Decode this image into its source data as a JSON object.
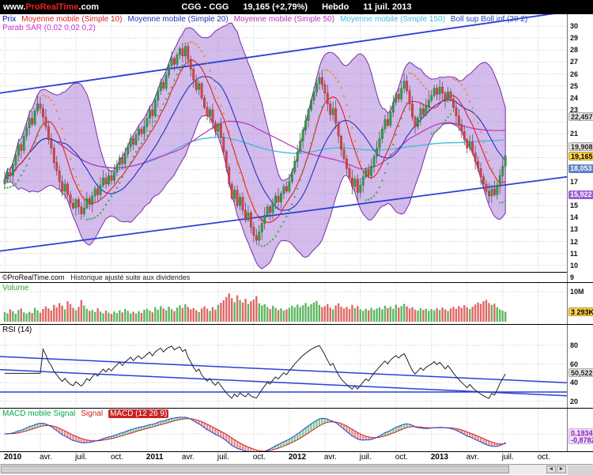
{
  "topbar": {
    "site_prefix": "www.",
    "site_brand": "ProRealTime",
    "site_suffix": ".com",
    "title": "CGG - CGG",
    "price": "19,165 (+2,79%)",
    "period": "Hebdo",
    "date": "11 juil. 2013"
  },
  "legend": {
    "prix": "Prix",
    "mm10": "Moyenne mobile (Simple 10)",
    "mm20": "Moyenne mobile (Simple 20)",
    "mm50": "Moyenne mobile (Simple 50)",
    "mm150": "Moyenne mobile (Simple 150)",
    "boll": "Boll sup Boll inf (20 2)",
    "sar": "Parab SAR (0,02 0,02 0,2)"
  },
  "copyright": {
    "brand": "©ProRealTime.com",
    "note": "Historique ajusté suite aux dividendes"
  },
  "panels": {
    "volume": {
      "label": "Volume",
      "tick_label": "10M",
      "badge": "3 293K"
    },
    "rsi": {
      "label": "RSI (14)",
      "badge": "50,522"
    },
    "macd": {
      "label_a": "MACD mobile Signal",
      "label_b": "Signal",
      "label_c": "MACD (12 26 9)",
      "badge_pos": "0,1934",
      "badge_neg": "-0,8782"
    }
  },
  "price_marks": [
    {
      "text": "22,457",
      "value": 22.457,
      "style": "silver"
    },
    {
      "text": "19,908",
      "value": 19.908,
      "style": "silver"
    },
    {
      "text": "19,165",
      "value": 19.165,
      "style": "yellow"
    },
    {
      "text": "18,053",
      "value": 18.053,
      "style": "blue"
    },
    {
      "text": "15,922",
      "value": 15.922,
      "style": "purple"
    }
  ],
  "xaxis": [
    {
      "label": "2010",
      "week": 0,
      "bold": true
    },
    {
      "label": "avr.",
      "week": 13,
      "bold": false
    },
    {
      "label": "juil.",
      "week": 26,
      "bold": false
    },
    {
      "label": "oct.",
      "week": 39,
      "bold": false
    },
    {
      "label": "2011",
      "week": 52,
      "bold": true
    },
    {
      "label": "avr.",
      "week": 65,
      "bold": false
    },
    {
      "label": "juil.",
      "week": 78,
      "bold": false
    },
    {
      "label": "oct.",
      "week": 91,
      "bold": false
    },
    {
      "label": "2012",
      "week": 104,
      "bold": true
    },
    {
      "label": "avr.",
      "week": 117,
      "bold": false
    },
    {
      "label": "juil.",
      "week": 130,
      "bold": false
    },
    {
      "label": "oct.",
      "week": 143,
      "bold": false
    },
    {
      "label": "2013",
      "week": 156,
      "bold": true
    },
    {
      "label": "avr.",
      "week": 169,
      "bold": false
    },
    {
      "label": "juil.",
      "week": 182,
      "bold": false
    },
    {
      "label": "oct.",
      "week": 195,
      "bold": false
    }
  ],
  "colors": {
    "up": "#2f9e44",
    "down": "#d64545",
    "wick": "#555555",
    "ma10": "#dd2222",
    "ma20": "#2233bb",
    "ma50": "#bb33bb",
    "ma150": "#44bbdd",
    "band_fill": "#a878d8",
    "band_edge": "#7a2fa8",
    "trend": "#2b3fd6",
    "grid": "#c8c8c8",
    "sar_up": "#3fae4a",
    "sar_down": "#ee8833",
    "vol_up": "#4cae50",
    "vol_down": "#dd5555",
    "rsi": "#222222",
    "macd_line": "#2244cc",
    "signal_line": "#cc2222",
    "hist_pos": "#55bb77",
    "hist_neg": "#dd6666"
  },
  "chart_data": {
    "type": "candlestick",
    "title": "CGG - CGG",
    "timeframe": "Hebdo (weekly)",
    "x_range": [
      "2010-01",
      "2013-10"
    ],
    "last_price": 19.165,
    "change_pct": 2.79,
    "price_axis": {
      "min": 8.8,
      "max": 30.75,
      "ticks": [
        30,
        29,
        28,
        27,
        26,
        25,
        24,
        23,
        21,
        17,
        15,
        14,
        13,
        12,
        11,
        10,
        9
      ]
    },
    "indicators": [
      "Moyenne mobile Simple 10",
      "Moyenne mobile Simple 20",
      "Moyenne mobile Simple 50",
      "Moyenne mobile Simple 150",
      "Bollinger 20 2",
      "Parabolique SAR 0,02 0,02 0,2",
      "Volume",
      "RSI 14",
      "MACD 12 26 9"
    ],
    "trendlines": [
      {
        "p_left": 24.4,
        "p_right": 31.2
      },
      {
        "p_left": 11.2,
        "p_right": 17.4
      }
    ],
    "rsi_trendlines": [
      {
        "from": 68,
        "to": 40
      },
      {
        "from": 54,
        "to": 26
      }
    ],
    "rsi_hline": 30,
    "rsi_axis": {
      "ticks": [
        80,
        60,
        40,
        20
      ],
      "last": 50.522
    },
    "volume_axis": {
      "tick_value": 10,
      "last_value": 3.293
    },
    "macd_axis": {
      "macd_last": 0.1934,
      "signal_last": -0.8782
    },
    "closes": [
      17.2,
      17.8,
      17.5,
      18.4,
      19.2,
      20.1,
      19.6,
      20.8,
      21.5,
      22.3,
      21.8,
      22.9,
      23.5,
      23.1,
      22.4,
      21.6,
      20.5,
      19.8,
      18.6,
      17.9,
      17.0,
      16.2,
      16.8,
      15.9,
      15.2,
      14.8,
      15.5,
      14.9,
      14.3,
      14.8,
      15.6,
      15.1,
      15.8,
      16.4,
      15.9,
      16.7,
      17.3,
      16.8,
      17.5,
      17.1,
      17.8,
      18.4,
      19.0,
      18.5,
      19.3,
      19.9,
      20.6,
      20.1,
      20.9,
      21.4,
      21.0,
      21.6,
      22.3,
      23.0,
      22.5,
      23.8,
      24.6,
      25.3,
      24.8,
      25.9,
      26.7,
      27.3,
      26.8,
      27.6,
      28.1,
      27.5,
      28.3,
      27.2,
      26.4,
      25.5,
      24.7,
      25.2,
      24.0,
      23.2,
      22.5,
      23.0,
      21.9,
      21.2,
      21.8,
      20.7,
      19.5,
      18.2,
      16.8,
      15.6,
      16.3,
      15.0,
      15.7,
      14.6,
      13.8,
      14.4,
      13.2,
      12.5,
      12.1,
      12.8,
      13.5,
      14.2,
      14.9,
      14.4,
      15.2,
      15.8,
      15.3,
      16.0,
      16.6,
      16.2,
      17.0,
      17.8,
      18.7,
      19.5,
      20.4,
      21.3,
      22.1,
      23.0,
      23.8,
      24.5,
      25.2,
      25.7,
      25.1,
      24.4,
      23.5,
      22.6,
      23.1,
      21.9,
      20.8,
      19.7,
      18.9,
      18.1,
      17.3,
      16.6,
      17.2,
      16.1,
      16.7,
      17.4,
      18.0,
      17.5,
      18.3,
      19.1,
      19.8,
      20.6,
      21.4,
      22.2,
      21.7,
      22.8,
      23.6,
      24.3,
      23.9,
      24.8,
      25.4,
      24.6,
      23.5,
      22.4,
      21.6,
      22.3,
      23.1,
      22.6,
      23.3,
      23.8,
      24.2,
      24.8,
      24.3,
      24.9,
      24.4,
      23.8,
      24.5,
      23.9,
      23.2,
      22.5,
      21.8,
      21.2,
      20.5,
      19.8,
      20.3,
      19.4,
      18.7,
      18.1,
      17.4,
      16.8,
      16.2,
      15.8,
      16.4,
      15.9,
      16.6,
      17.5,
      18.3,
      19.165
    ],
    "volumes": [
      3.2,
      2.8,
      4.1,
      3.5,
      2.6,
      3.9,
      4.4,
      3.1,
      2.7,
      3.3,
      2.9,
      4.6,
      3.8,
      3.0,
      4.2,
      5.1,
      4.4,
      3.7,
      5.6,
      4.8,
      6.2,
      5.3,
      4.1,
      6.8,
      5.9,
      4.6,
      3.8,
      4.9,
      7.2,
      5.4,
      4.3,
      3.6,
      3.9,
      3.2,
      4.5,
      3.4,
      2.8,
      3.7,
      3.0,
      2.6,
      3.4,
      2.9,
      3.8,
      3.1,
      4.2,
      3.6,
      2.8,
      3.3,
      2.7,
      3.5,
      2.9,
      4.0,
      4.3,
      3.7,
      3.1,
      4.8,
      4.0,
      5.2,
      4.4,
      3.8,
      5.0,
      4.2,
      3.5,
      4.7,
      5.5,
      4.6,
      5.8,
      4.9,
      4.1,
      4.5,
      3.8,
      3.2,
      4.4,
      5.1,
      4.3,
      3.6,
      4.8,
      4.0,
      5.6,
      6.3,
      7.1,
      8.2,
      9.4,
      7.8,
      6.5,
      8.8,
      7.2,
      6.4,
      7.6,
      5.9,
      6.8,
      7.4,
      8.5,
      6.1,
      5.4,
      5.8,
      4.9,
      4.2,
      5.3,
      4.6,
      3.9,
      4.4,
      3.7,
      4.1,
      4.6,
      5.3,
      4.8,
      5.7,
      4.9,
      5.5,
      6.2,
      5.1,
      5.8,
      6.4,
      6.9,
      5.6,
      4.8,
      5.2,
      5.9,
      4.7,
      4.1,
      5.4,
      6.1,
      5.0,
      4.4,
      4.9,
      4.2,
      5.6,
      4.5,
      5.2,
      4.1,
      3.6,
      4.3,
      3.8,
      4.6,
      3.9,
      4.4,
      4.8,
      4.1,
      5.3,
      4.5,
      5.0,
      4.3,
      5.6,
      4.7,
      5.2,
      5.9,
      5.1,
      4.4,
      4.8,
      4.0,
      3.7,
      4.5,
      3.9,
      4.3,
      3.6,
      4.2,
      3.8,
      4.5,
      3.9,
      4.7,
      4.1,
      3.6,
      4.4,
      4.9,
      4.3,
      5.2,
      4.6,
      5.5,
      4.8,
      4.2,
      5.0,
      5.7,
      6.4,
      5.9,
      6.8,
      7.3,
      6.2,
      5.6,
      6.0,
      4.8,
      4.1,
      3.7,
      3.293
    ]
  }
}
